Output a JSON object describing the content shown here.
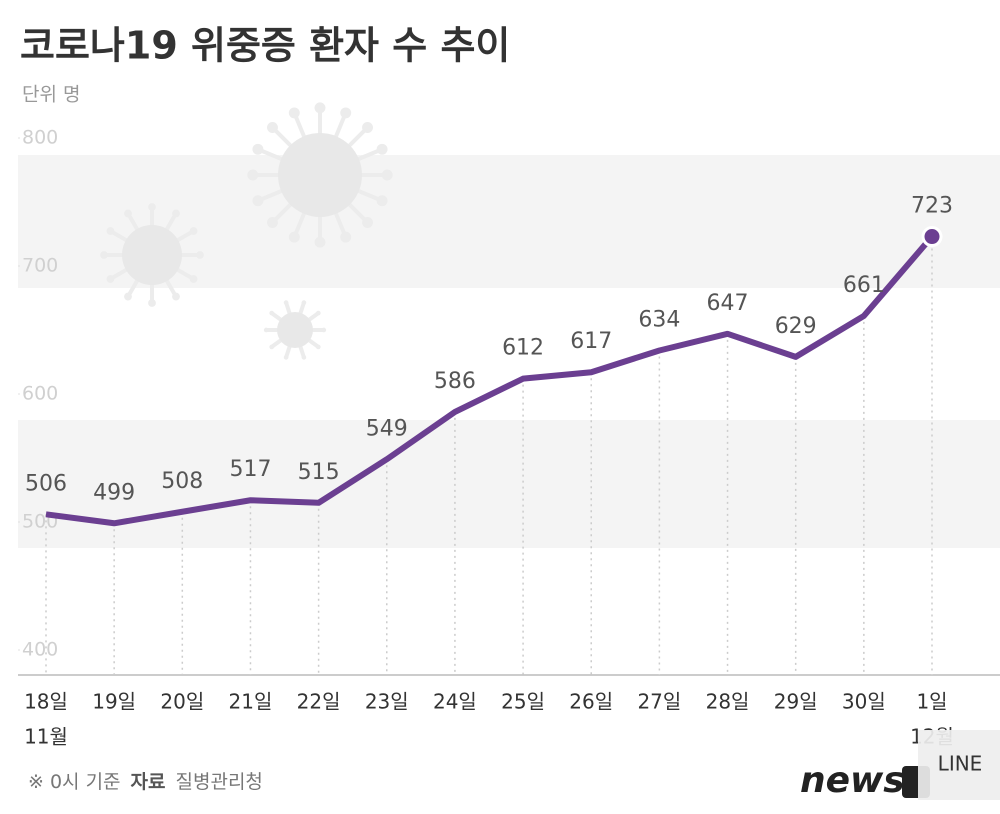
{
  "chart_data": {
    "type": "line",
    "title": "코로나19 위중증 환자 수 추이",
    "unit": "단위 명",
    "categories": [
      "18일",
      "19일",
      "20일",
      "21일",
      "22일",
      "23일",
      "24일",
      "25일",
      "26일",
      "27일",
      "28일",
      "29일",
      "30일",
      "1일"
    ],
    "x_sublabels": [
      "11월",
      null,
      null,
      null,
      null,
      null,
      null,
      null,
      null,
      null,
      null,
      null,
      null,
      "12월"
    ],
    "values": [
      506,
      499,
      508,
      517,
      515,
      549,
      586,
      612,
      617,
      634,
      647,
      629,
      661,
      723
    ],
    "color": "#6b3f91",
    "ylim": [
      400,
      800
    ],
    "yticks": [
      400,
      500,
      600,
      700,
      800
    ],
    "footnote": {
      "basis": "※ 0시 기준",
      "source_label": "자료",
      "source": "질병관리청"
    },
    "logo": "news",
    "watermark": "LINE"
  }
}
